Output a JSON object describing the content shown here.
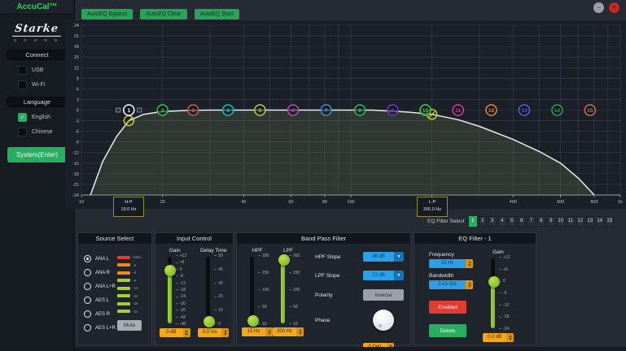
{
  "window": {
    "minimize_icon": "–",
    "close_icon": "✕"
  },
  "sidebar": {
    "title": "AccuCal™",
    "logo": "Starke",
    "logo_sub": "S O U N D",
    "connect": {
      "label": "Connect",
      "items": [
        {
          "label": "USB",
          "checked": false
        },
        {
          "label": "Wi-Fi",
          "checked": false
        }
      ]
    },
    "language": {
      "label": "Language",
      "items": [
        {
          "label": "English",
          "checked": true
        },
        {
          "label": "Chinese",
          "checked": false
        }
      ]
    },
    "system_button": "System(Enter)"
  },
  "topbar": {
    "buttons": [
      "AutoEQ Bypass",
      "AutoEQ Clear",
      "AutoEQ Start"
    ]
  },
  "chart_data": {
    "type": "line",
    "x_scale": "log",
    "x_range_hz": [
      10,
      1000
    ],
    "y_range_db": [
      -24,
      24
    ],
    "y_tick_step_db": 3,
    "x_tick_labels": [
      {
        "t": "10",
        "f": 10
      },
      {
        "t": "20",
        "f": 20
      },
      {
        "t": "40",
        "f": 40
      },
      {
        "t": "60",
        "f": 60
      },
      {
        "t": "80",
        "f": 80
      },
      {
        "t": "100",
        "f": 100
      },
      {
        "t": "200",
        "f": 200
      },
      {
        "t": "400",
        "f": 400
      },
      {
        "t": "600",
        "f": 600
      },
      {
        "t": "800",
        "f": 800
      },
      {
        "t": "1k",
        "f": 1000
      }
    ],
    "response_curve_points": [
      [
        10.8,
        -24
      ],
      [
        12,
        -14.5
      ],
      [
        13.5,
        -7.5
      ],
      [
        15,
        -3
      ],
      [
        17,
        -1.2
      ],
      [
        20,
        -0.4
      ],
      [
        25,
        -0.1
      ],
      [
        30,
        0
      ],
      [
        120,
        0
      ],
      [
        160,
        -0.5
      ],
      [
        200,
        -1.2
      ],
      [
        250,
        -2.7
      ],
      [
        300,
        -4.6
      ],
      [
        400,
        -8.3
      ],
      [
        500,
        -11.7
      ],
      [
        600,
        -15
      ],
      [
        700,
        -19.3
      ],
      [
        800,
        -24
      ]
    ],
    "eq_nodes": [
      {
        "id": 1,
        "freq_hz": 15,
        "gain_db": 0,
        "color": "#ffffff"
      },
      {
        "id": 2,
        "freq_hz": 20,
        "gain_db": 0,
        "color": "#2ecc40"
      },
      {
        "id": 3,
        "freq_hz": 26,
        "gain_db": 0,
        "color": "#e0544e"
      },
      {
        "id": 4,
        "freq_hz": 35,
        "gain_db": 0,
        "color": "#00c3cc"
      },
      {
        "id": 5,
        "freq_hz": 46,
        "gain_db": 0,
        "color": "#c9cf2d"
      },
      {
        "id": 6,
        "freq_hz": 61,
        "gain_db": 0,
        "color": "#c542c5"
      },
      {
        "id": 7,
        "freq_hz": 81,
        "gain_db": 0,
        "color": "#4090e0"
      },
      {
        "id": 8,
        "freq_hz": 108,
        "gain_db": 0,
        "color": "#19c95e"
      },
      {
        "id": 9,
        "freq_hz": 143,
        "gain_db": 0,
        "color": "#7a2fe8"
      },
      {
        "id": 10,
        "freq_hz": 189,
        "gain_db": 0,
        "color": "#3ddc3d"
      },
      {
        "id": 11,
        "freq_hz": 250,
        "gain_db": 0,
        "color": "#e8359b"
      },
      {
        "id": 12,
        "freq_hz": 332,
        "gain_db": 0,
        "color": "#ef8a1d"
      },
      {
        "id": 13,
        "freq_hz": 440,
        "gain_db": 0,
        "color": "#5862e0"
      },
      {
        "id": 14,
        "freq_hz": 583,
        "gain_db": 0,
        "color": "#2aa84f"
      },
      {
        "id": 15,
        "freq_hz": 772,
        "gain_db": 0,
        "color": "#e06a50"
      }
    ],
    "filter_markers": [
      {
        "name": "high-pass",
        "freq_hz": 15,
        "db": -3,
        "color": "#c9cf2d"
      },
      {
        "name": "low-pass",
        "freq_hz": 200,
        "db": -1.2,
        "color": "#c9cf2d"
      }
    ],
    "hp_tag": {
      "line1": "H-P",
      "line2": "15.0 Hz"
    },
    "lp_tag": {
      "line1": "L-P",
      "line2": "200.0 Hz"
    }
  },
  "eq_filter_select": {
    "label": "EQ Filter Select",
    "options": [
      "1",
      "2",
      "3",
      "4",
      "5",
      "6",
      "7",
      "8",
      "9",
      "10",
      "11",
      "12",
      "13",
      "14",
      "15"
    ],
    "selected": "1"
  },
  "panels": {
    "source_select": {
      "title": "Source Select",
      "options": [
        {
          "label": "ANA L",
          "selected": true
        },
        {
          "label": "ANA R",
          "selected": false
        },
        {
          "label": "ANA L+R",
          "selected": false
        },
        {
          "label": "AES L",
          "selected": false
        },
        {
          "label": "AES R",
          "selected": false
        },
        {
          "label": "AES L+R",
          "selected": false
        }
      ],
      "meter": {
        "segments": [
          {
            "color": "#e03c32",
            "label": "0dBu"
          },
          {
            "color": "#ef8a1d",
            "label": "-3"
          },
          {
            "color": "#ef8a1d",
            "label": "-6"
          },
          {
            "color": "#a6ce39",
            "label": "-9"
          },
          {
            "color": "#a6ce39",
            "label": "-12"
          },
          {
            "color": "#a6ce39",
            "label": "-24"
          },
          {
            "color": "#a6ce39",
            "label": "-36"
          },
          {
            "color": "#a6ce39",
            "label": "-54"
          }
        ]
      },
      "mute_button": "Mute"
    },
    "input_control": {
      "title": "Input Control",
      "gain": {
        "label": "Gain",
        "ticks": [
          "+12",
          "+6",
          "0",
          "-6",
          "-12",
          "-18",
          "-24",
          "-30",
          "-36",
          "-42",
          "-48"
        ],
        "thumb_pct": 20,
        "value": "0 dB"
      },
      "delay": {
        "label": "Delay Time",
        "ticks": [
          "50",
          "40",
          "30",
          "20",
          "10",
          "0"
        ],
        "thumb_pct": 96,
        "value": "0.0 ms"
      }
    },
    "band_pass": {
      "title": "Band Pass Filter",
      "hpf": {
        "label": "HPF",
        "ticks": [
          "200",
          "150",
          "100",
          "50",
          "10"
        ],
        "thumb_pct": 95,
        "value": "15 Hz"
      },
      "lpf": {
        "label": "LPF",
        "ticks": [
          "200",
          "150",
          "100",
          "50",
          "10"
        ],
        "thumb_pct": 4,
        "value": "200 Hz"
      },
      "hpf_slope": {
        "label": "HPF Slope",
        "value": "48 dB"
      },
      "lpf_slope": {
        "label": "LPF Slope",
        "value": "12 dB"
      },
      "polarity": {
        "label": "Polarity",
        "button": "Inverse"
      },
      "phase": {
        "label": "Phase",
        "value": "0 Deg"
      }
    },
    "eq_filter": {
      "title": "EQ Filter - 1",
      "frequency": {
        "label": "Frequency",
        "value": "15 Hz"
      },
      "bandwidth": {
        "label": "Bandwidth",
        "value": "0.15 Oct"
      },
      "enabled_button": "Enabled",
      "delete_button": "Delete",
      "gain": {
        "label": "Gain",
        "ticks": [
          "+12",
          "+6",
          "0",
          "-6",
          "-12",
          "-18",
          "-24"
        ],
        "thumb_pct": 33,
        "value": "0.0 dB"
      }
    }
  },
  "colors": {
    "accent_green": "#27ae60",
    "value_orange": "#f2a81d",
    "value_blue": "#2b9fe8",
    "enabled_red": "#e03c32",
    "curve": "#e8edf2"
  }
}
